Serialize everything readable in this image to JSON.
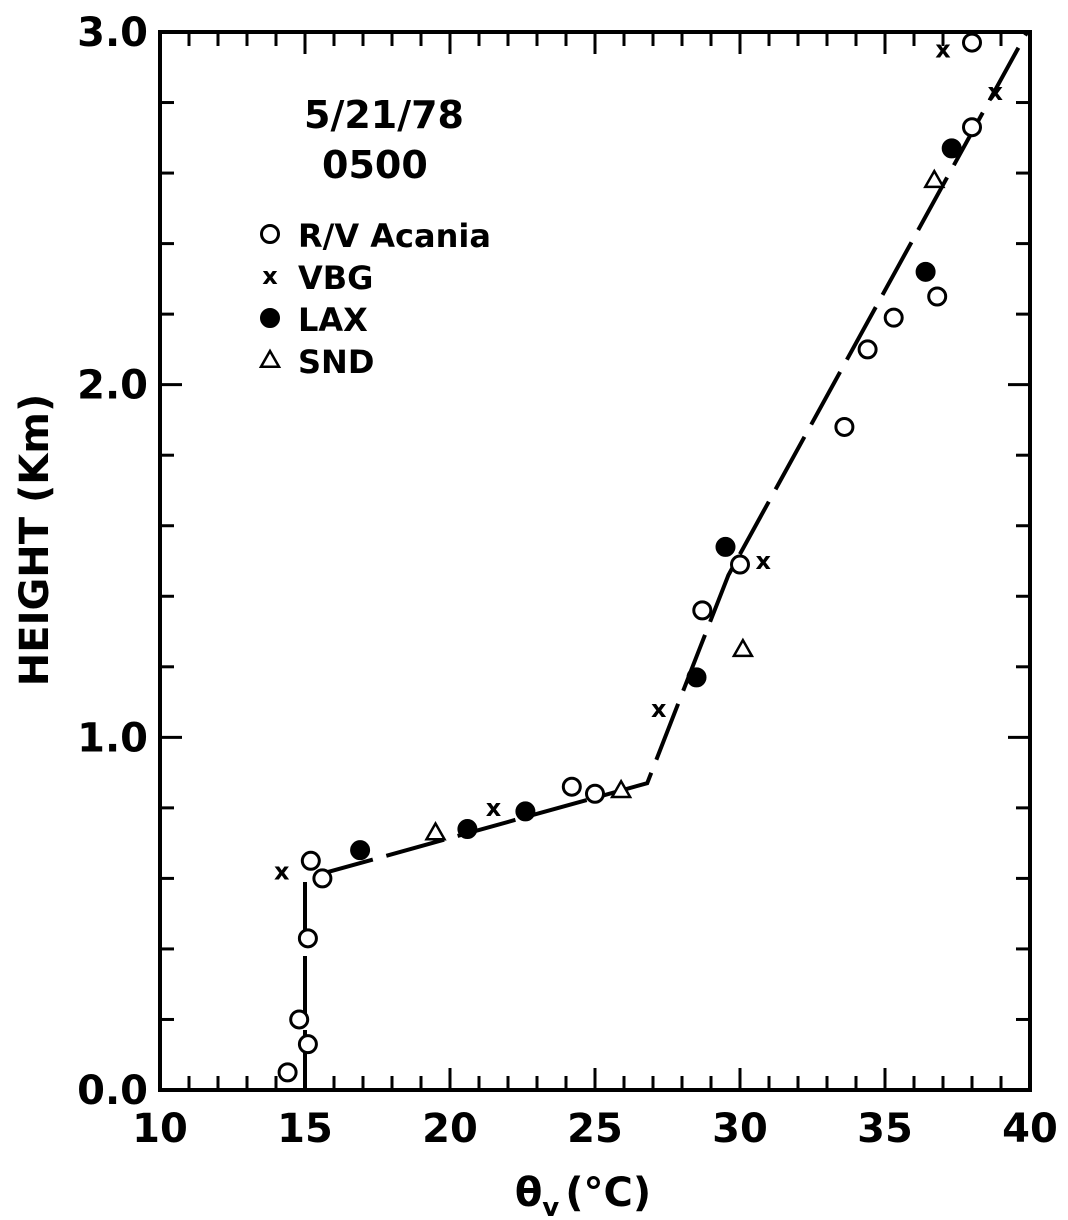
{
  "chart_data": {
    "type": "scatter",
    "title": "",
    "annotation": {
      "date": "5/21/78",
      "time": "0500"
    },
    "xlabel": "θv (°C)",
    "xlabel_main": "θ",
    "xlabel_sub": "v",
    "xlabel_unit": "(°C)",
    "ylabel": "HEIGHT (Km)",
    "xlim": [
      10,
      40
    ],
    "ylim": [
      0.0,
      3.0
    ],
    "xticks": [
      "10",
      "15",
      "20",
      "25",
      "30",
      "35",
      "40"
    ],
    "yticks": [
      "0.0",
      "1.0",
      "2.0",
      "3.0"
    ],
    "grid": false,
    "legend_position": "top-left",
    "series": [
      {
        "name": "R/V Acania",
        "marker": "open-circle",
        "points": [
          [
            14.4,
            0.05
          ],
          [
            14.8,
            0.2
          ],
          [
            15.1,
            0.13
          ],
          [
            15.1,
            0.43
          ],
          [
            15.6,
            0.6
          ],
          [
            15.2,
            0.65
          ],
          [
            24.2,
            0.86
          ],
          [
            25.0,
            0.84
          ],
          [
            28.7,
            1.36
          ],
          [
            30.0,
            1.49
          ],
          [
            33.6,
            1.88
          ],
          [
            34.4,
            2.1
          ],
          [
            35.3,
            2.19
          ],
          [
            36.8,
            2.25
          ],
          [
            38.0,
            2.73
          ],
          [
            38.0,
            2.97
          ]
        ]
      },
      {
        "name": "VBG",
        "marker": "x",
        "points": [
          [
            14.2,
            0.62
          ],
          [
            21.5,
            0.8
          ],
          [
            27.2,
            1.08
          ],
          [
            30.8,
            1.5
          ],
          [
            37.0,
            2.95
          ],
          [
            38.8,
            2.83
          ]
        ]
      },
      {
        "name": "LAX",
        "marker": "filled-circle",
        "points": [
          [
            16.9,
            0.68
          ],
          [
            20.6,
            0.74
          ],
          [
            22.6,
            0.79
          ],
          [
            28.5,
            1.17
          ],
          [
            29.5,
            1.54
          ],
          [
            36.4,
            2.32
          ],
          [
            37.3,
            2.67
          ]
        ]
      },
      {
        "name": "SND",
        "marker": "triangle",
        "points": [
          [
            19.5,
            0.73
          ],
          [
            25.9,
            0.85
          ],
          [
            30.1,
            1.25
          ],
          [
            36.7,
            2.58
          ]
        ]
      }
    ],
    "fit_line": {
      "style": "long-dash",
      "points": [
        [
          15.0,
          0.0
        ],
        [
          15.0,
          0.6
        ],
        [
          26.8,
          0.87
        ],
        [
          28.6,
          1.25
        ],
        [
          29.6,
          1.46
        ],
        [
          39.9,
          3.0
        ]
      ]
    }
  }
}
